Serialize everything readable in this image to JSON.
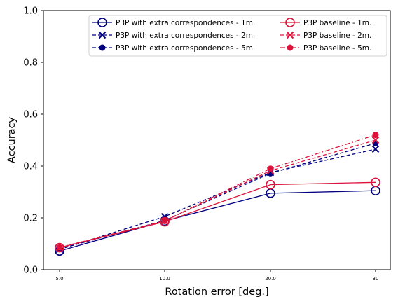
{
  "chart_data": {
    "type": "line",
    "xlabel": "Rotation error [deg.]",
    "ylabel": "Accuracy",
    "categories": [
      "5.0",
      "10.0",
      "20.0",
      "30"
    ],
    "ylim": [
      0,
      1
    ],
    "y_ticks": [
      "0.0",
      "0.2",
      "0.4",
      "0.6",
      "0.8",
      "1.0"
    ],
    "grid": false,
    "legend_placement": "top-right",
    "series": [
      {
        "name": "P3P with extra correspondences - 1m.",
        "values": [
          0.072,
          0.188,
          0.295,
          0.305
        ],
        "color": "#000080",
        "linestyle": "solid",
        "marker": "open-circle"
      },
      {
        "name": "P3P with extra correspondences - 2m.",
        "values": [
          0.078,
          0.205,
          0.375,
          0.465
        ],
        "color": "#000080",
        "linestyle": "dashed",
        "marker": "x"
      },
      {
        "name": "P3P with extra correspondences - 5m.",
        "values": [
          0.08,
          0.19,
          0.372,
          0.488
        ],
        "color": "#000080",
        "linestyle": "dashed",
        "marker": "filled-circle"
      },
      {
        "name": "P3P baseline - 1m.",
        "values": [
          0.085,
          0.185,
          0.328,
          0.337
        ],
        "color": "#dc143c",
        "linestyle": "solid",
        "marker": "open-circle"
      },
      {
        "name": "P3P baseline - 2m.",
        "values": [
          0.085,
          0.188,
          0.382,
          0.5
        ],
        "color": "#dc143c",
        "linestyle": "dashed",
        "marker": "x"
      },
      {
        "name": "P3P baseline - 5m.",
        "values": [
          0.086,
          0.188,
          0.39,
          0.52
        ],
        "color": "#dc143c",
        "linestyle": "dashdot",
        "marker": "filled-circle"
      }
    ]
  }
}
